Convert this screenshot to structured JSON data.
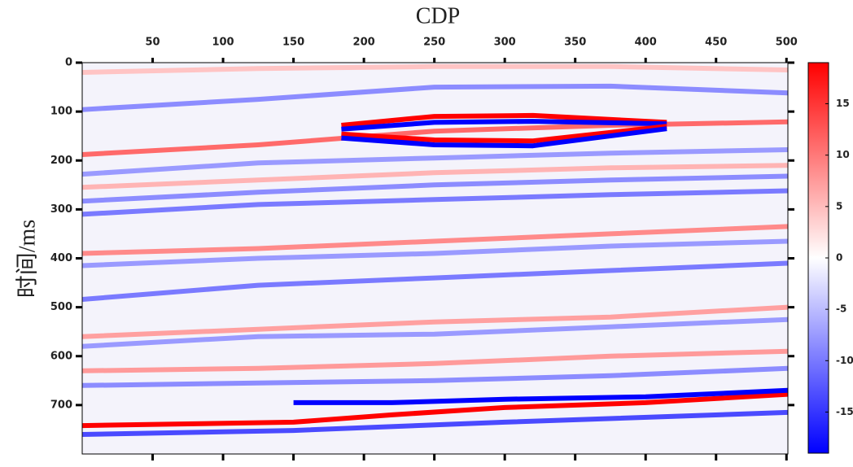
{
  "chart_data": {
    "type": "heatmap",
    "x_label": "CDP",
    "y_label": "时间/ms",
    "xlim": [
      0,
      501
    ],
    "xticks": [
      50,
      100,
      150,
      200,
      250,
      300,
      350,
      400,
      450,
      500
    ],
    "ylim": [
      0,
      800
    ],
    "yticks": [
      0,
      100,
      200,
      300,
      400,
      500,
      600,
      700
    ],
    "clim": [
      -19,
      19
    ],
    "cticks": [
      -15,
      -10,
      -5,
      0,
      5,
      10,
      15
    ],
    "colormap": [
      "#0000ff",
      "#ffffff",
      "#ff0000"
    ],
    "horizons": [
      {
        "x": [
          0,
          125,
          250,
          375,
          501
        ],
        "y": [
          20,
          12,
          8,
          8,
          15
        ],
        "color": "#ffc4c4"
      },
      {
        "x": [
          0,
          125,
          250,
          375,
          501
        ],
        "y": [
          96,
          75,
          50,
          48,
          62
        ],
        "color": "#8c8cff"
      },
      {
        "x": [
          0,
          125,
          250,
          375,
          501
        ],
        "y": [
          188,
          168,
          140,
          128,
          121
        ],
        "color": "#ff6a6a"
      },
      {
        "x": [
          0,
          125,
          250,
          375,
          501
        ],
        "y": [
          228,
          205,
          195,
          185,
          178
        ],
        "color": "#9a9aff"
      },
      {
        "x": [
          0,
          125,
          250,
          375,
          501
        ],
        "y": [
          255,
          240,
          225,
          215,
          210
        ],
        "color": "#ffb4b4"
      },
      {
        "x": [
          0,
          125,
          250,
          375,
          501
        ],
        "y": [
          283,
          265,
          250,
          240,
          232
        ],
        "color": "#8c8cff"
      },
      {
        "x": [
          0,
          125,
          250,
          375,
          501
        ],
        "y": [
          310,
          290,
          280,
          270,
          262
        ],
        "color": "#7a7aff"
      },
      {
        "x": [
          0,
          125,
          250,
          375,
          501
        ],
        "y": [
          390,
          380,
          365,
          350,
          335
        ],
        "color": "#ff8a8a"
      },
      {
        "x": [
          0,
          125,
          250,
          375,
          501
        ],
        "y": [
          415,
          400,
          390,
          375,
          365
        ],
        "color": "#9a9aff"
      },
      {
        "x": [
          0,
          125,
          250,
          375,
          501
        ],
        "y": [
          484,
          455,
          440,
          425,
          410
        ],
        "color": "#7a7aff"
      },
      {
        "x": [
          0,
          125,
          250,
          375,
          501
        ],
        "y": [
          560,
          545,
          530,
          520,
          500
        ],
        "color": "#ffa0a0"
      },
      {
        "x": [
          0,
          125,
          250,
          375,
          501
        ],
        "y": [
          580,
          560,
          555,
          540,
          525
        ],
        "color": "#9a9aff"
      },
      {
        "x": [
          0,
          125,
          250,
          375,
          501
        ],
        "y": [
          630,
          625,
          615,
          600,
          590
        ],
        "color": "#ff9a9a"
      },
      {
        "x": [
          0,
          125,
          250,
          375,
          501
        ],
        "y": [
          660,
          655,
          650,
          640,
          625
        ],
        "color": "#8c8cff"
      },
      {
        "x": [
          184,
          250,
          320,
          415
        ],
        "y": [
          128,
          110,
          108,
          122
        ],
        "color": "#ff0000"
      },
      {
        "x": [
          184,
          250,
          320,
          415
        ],
        "y": [
          136,
          122,
          120,
          125
        ],
        "color": "#0000ff"
      },
      {
        "x": [
          184,
          250,
          320,
          415
        ],
        "y": [
          146,
          158,
          160,
          130
        ],
        "color": "#ff0000"
      },
      {
        "x": [
          184,
          250,
          320,
          415
        ],
        "y": [
          154,
          168,
          170,
          135
        ],
        "color": "#0000ff"
      },
      {
        "x": [
          0,
          150,
          220,
          300,
          400,
          501
        ],
        "y": [
          742,
          735,
          720,
          705,
          695,
          678
        ],
        "color": "#ff0000"
      },
      {
        "x": [
          150,
          220,
          300,
          400,
          501
        ],
        "y": [
          695,
          695,
          688,
          683,
          670
        ],
        "color": "#0000ff"
      },
      {
        "x": [
          0,
          150,
          300,
          501
        ],
        "y": [
          760,
          752,
          735,
          715
        ],
        "color": "#4a4aff"
      }
    ]
  }
}
